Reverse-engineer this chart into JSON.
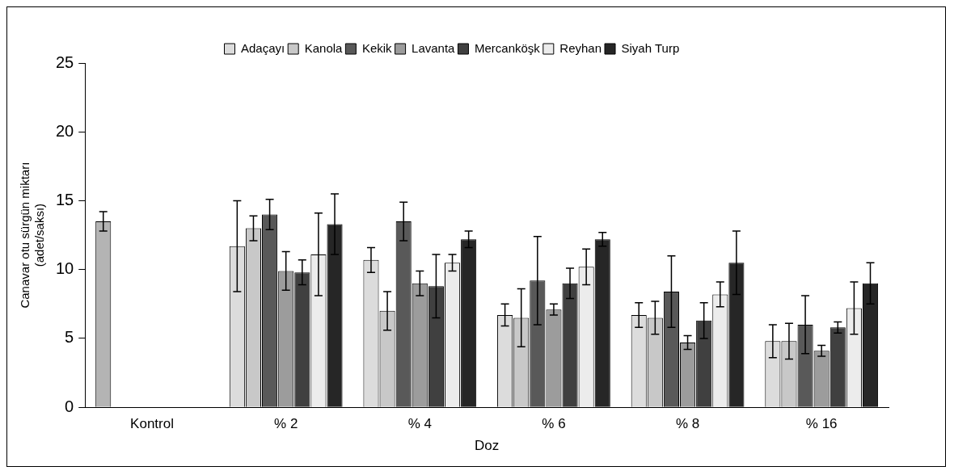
{
  "chart_data": {
    "type": "bar",
    "xlabel": "Doz",
    "ylabel": "Canavar otu sürgün miktarı\n(adet/saksı)",
    "categories": [
      "Kontrol",
      "% 2",
      "% 4",
      "% 6",
      "% 8",
      "% 16"
    ],
    "ylim": [
      0,
      25
    ],
    "yticks": [
      0,
      5,
      10,
      15,
      20,
      25
    ],
    "grid": false,
    "legend": "top",
    "series": [
      {
        "name": "Adaçayı",
        "color": "#dcdcdc",
        "colors": [
          "#b4b4b4",
          "#dcdcdc",
          "#dcdcdc",
          "#dcdcdc",
          "#dcdcdc",
          "#dcdcdc"
        ],
        "values": [
          13.5,
          11.7,
          10.7,
          6.7,
          6.7,
          4.8
        ],
        "errors": [
          0.7,
          3.3,
          0.9,
          0.8,
          0.9,
          1.2
        ]
      },
      {
        "name": "Kanola",
        "color": "#c8c8c8",
        "values": [
          null,
          13.0,
          7.0,
          6.5,
          6.5,
          4.8
        ],
        "errors": [
          null,
          0.9,
          1.4,
          2.1,
          1.2,
          1.3
        ]
      },
      {
        "name": "Kekik",
        "color": "#595959",
        "values": [
          null,
          14.0,
          13.5,
          9.2,
          8.4,
          6.0
        ],
        "errors": [
          null,
          1.1,
          1.4,
          3.2,
          2.6,
          2.1
        ]
      },
      {
        "name": "Lavanta",
        "color": "#9c9c9c",
        "values": [
          null,
          9.9,
          9.0,
          7.1,
          4.7,
          4.1
        ],
        "errors": [
          null,
          1.4,
          0.9,
          0.4,
          0.5,
          0.4
        ]
      },
      {
        "name": "Mercanköşk",
        "color": "#404040",
        "values": [
          null,
          9.8,
          8.8,
          9.0,
          6.3,
          5.8
        ],
        "errors": [
          null,
          0.9,
          2.3,
          1.1,
          1.3,
          0.4
        ]
      },
      {
        "name": "Reyhan",
        "color": "#ececec",
        "values": [
          null,
          11.1,
          10.5,
          10.2,
          8.2,
          7.2
        ],
        "errors": [
          null,
          3.0,
          0.6,
          1.3,
          0.9,
          1.9
        ]
      },
      {
        "name": "Siyah Turp",
        "color": "#262626",
        "values": [
          null,
          13.3,
          12.2,
          12.2,
          10.5,
          9.0
        ],
        "errors": [
          null,
          2.2,
          0.6,
          0.5,
          2.3,
          1.5
        ]
      }
    ]
  }
}
